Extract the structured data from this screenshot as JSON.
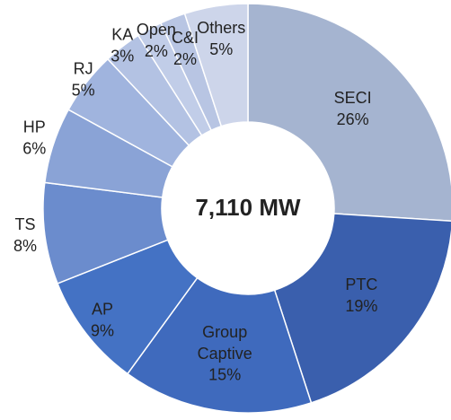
{
  "chart_data": {
    "type": "donut",
    "center_label": "7,110 MW",
    "categories": [
      "SECI",
      "PTC",
      "Group Captive",
      "AP",
      "TS",
      "HP",
      "RJ",
      "KA",
      "Open",
      "C&I",
      "Others"
    ],
    "values": [
      26,
      19,
      15,
      9,
      8,
      6,
      5,
      3,
      2,
      2,
      5
    ],
    "value_labels": [
      "26%",
      "19%",
      "15%",
      "9%",
      "8%",
      "6%",
      "5%",
      "3%",
      "2%",
      "2%",
      "5%"
    ],
    "colors": [
      "#a5b4d0",
      "#3a5fad",
      "#3f6abd",
      "#4472c4",
      "#6b8ccd",
      "#8aa3d6",
      "#a0b4de",
      "#b3c2e3",
      "#c1cde8",
      "#b8c5e3",
      "#cdd5ea"
    ]
  }
}
